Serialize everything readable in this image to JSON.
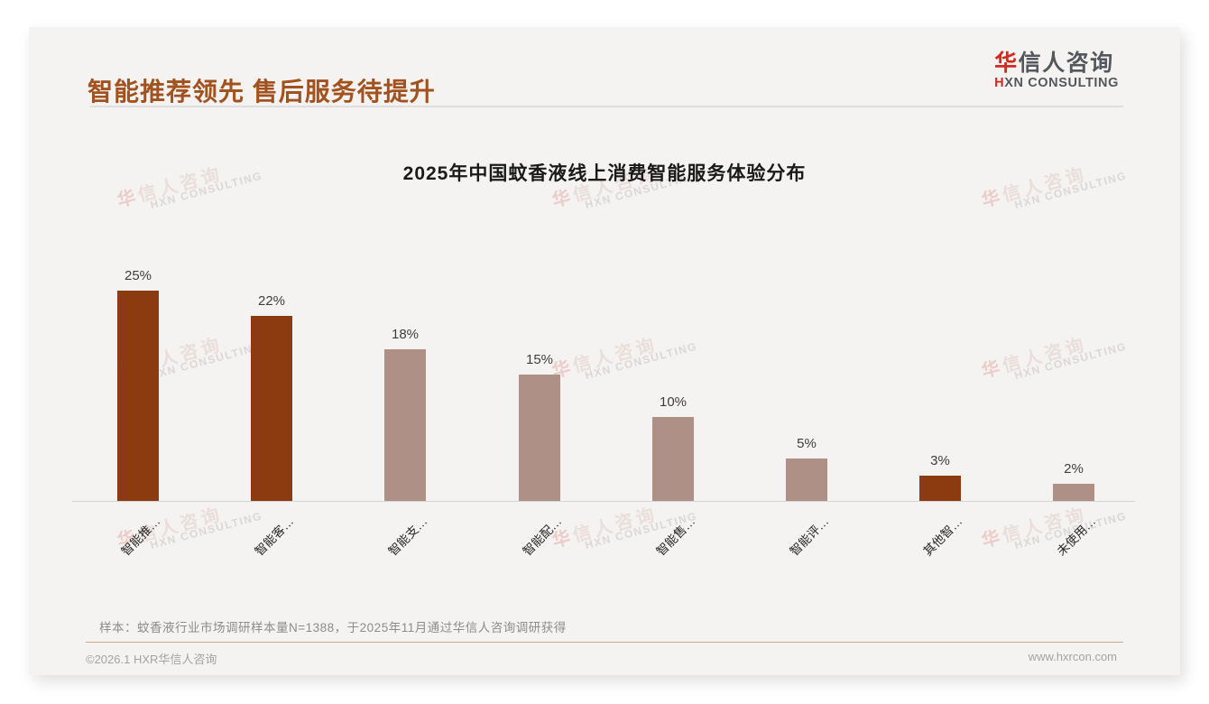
{
  "header": {
    "title": "智能推荐领先 售后服务待提升",
    "logo": {
      "cn_first": "华",
      "cn_rest": "信人咨询",
      "en_first": "H",
      "en_rest": "XN CONSULTING"
    }
  },
  "watermark": {
    "cn_first": "华",
    "cn_rest": "信人咨询",
    "en": "HXN CONSULTING"
  },
  "chart_data": {
    "type": "bar",
    "title": "2025年中国蚊香液线上消费智能服务体验分布",
    "categories": [
      "智能推…",
      "智能客…",
      "智能支…",
      "智能配…",
      "智能售…",
      "智能评…",
      "其他智…",
      "未使用…"
    ],
    "values": [
      25,
      22,
      18,
      15,
      10,
      5,
      3,
      2
    ],
    "unit": "%",
    "bar_colors": [
      "#8c3a10",
      "#8c3a10",
      "#af9086",
      "#af9086",
      "#af9086",
      "#af9086",
      "#8c3a10",
      "#af9086"
    ],
    "ylim": [
      0,
      27
    ],
    "grid": false,
    "legend": false
  },
  "footer": {
    "sample_note": "样本：蚊香液行业市场调研样本量N=1388，于2025年11月通过华信人咨询调研获得",
    "copyright": "©2026.1 HXR华信人咨询",
    "website": "www.hxrcon.com"
  },
  "colors": {
    "accent_dark": "#8c3a10",
    "accent_light": "#af9086",
    "title_brown": "#a2521f",
    "logo_red": "#d5281e"
  }
}
